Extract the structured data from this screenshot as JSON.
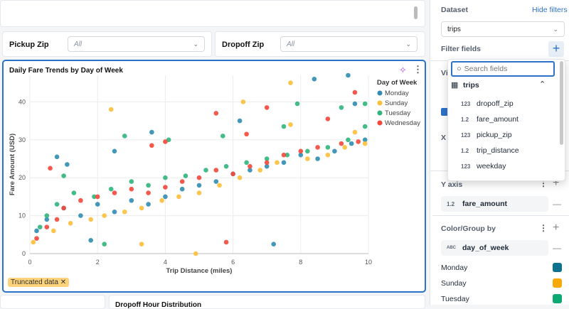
{
  "filters": [
    {
      "label": "Pickup Zip",
      "value": "All"
    },
    {
      "label": "Dropoff Zip",
      "value": "All"
    }
  ],
  "chart_card": {
    "title": "Daily Fare Trends by Day of Week",
    "truncated_label": "Truncated data"
  },
  "bottom_card": {
    "title": "Dropoff Hour Distribution"
  },
  "chart_data": {
    "type": "scatter",
    "title": "Daily Fare Trends by Day of Week",
    "xlabel": "Trip Distance (miles)",
    "ylabel": "Fare Amount (USD)",
    "xlim": [
      0,
      10
    ],
    "ylim": [
      0,
      47
    ],
    "xticks": [
      0,
      2,
      4,
      6,
      8,
      10
    ],
    "yticks": [
      0,
      10,
      20,
      30,
      40
    ],
    "grid": true,
    "legend_title": "Day of Week",
    "legend_placement": "right",
    "series": [
      {
        "name": "Monday",
        "color": "#2f8cb0",
        "points": [
          [
            0.8,
            25.5
          ],
          [
            1.1,
            23.5
          ],
          [
            3.6,
            32
          ],
          [
            2.5,
            27
          ],
          [
            6.2,
            35
          ],
          [
            8.4,
            46
          ],
          [
            9.4,
            47
          ],
          [
            9.6,
            39.5
          ],
          [
            1.8,
            3.5
          ],
          [
            7.2,
            2.5
          ],
          [
            0.2,
            6
          ],
          [
            0.5,
            9
          ],
          [
            1,
            12
          ],
          [
            1.5,
            10
          ],
          [
            2,
            13
          ],
          [
            2.5,
            11
          ],
          [
            3,
            14
          ],
          [
            3.5,
            13
          ],
          [
            4,
            15
          ],
          [
            4.5,
            17
          ],
          [
            5,
            18
          ],
          [
            5.5,
            19
          ],
          [
            6,
            21
          ],
          [
            6.5,
            22
          ],
          [
            7,
            23
          ],
          [
            7.5,
            24
          ],
          [
            8,
            26
          ],
          [
            8.5,
            25
          ],
          [
            9,
            27
          ],
          [
            9.5,
            29
          ],
          [
            9.9,
            30
          ]
        ]
      },
      {
        "name": "Sunday",
        "color": "#fbbf3a",
        "points": [
          [
            2.4,
            38
          ],
          [
            7.7,
            45
          ],
          [
            6.3,
            40
          ],
          [
            3.3,
            2.5
          ],
          [
            4.9,
            0
          ],
          [
            0.1,
            3
          ],
          [
            0.7,
            6
          ],
          [
            1.2,
            8
          ],
          [
            1.8,
            9
          ],
          [
            2.2,
            10
          ],
          [
            2.8,
            11
          ],
          [
            3.3,
            12
          ],
          [
            3.9,
            14
          ],
          [
            4.4,
            15
          ],
          [
            5,
            16
          ],
          [
            5.6,
            18
          ],
          [
            6.2,
            20
          ],
          [
            6.8,
            22
          ],
          [
            7.3,
            24
          ],
          [
            7.7,
            34
          ],
          [
            8.2,
            25
          ],
          [
            8.8,
            26
          ],
          [
            9.3,
            28
          ],
          [
            9.6,
            32
          ],
          [
            9.9,
            29
          ]
        ]
      },
      {
        "name": "Tuesday",
        "color": "#2fb57c",
        "points": [
          [
            2.8,
            31
          ],
          [
            4.1,
            30
          ],
          [
            5.7,
            31
          ],
          [
            7.9,
            39.5
          ],
          [
            9.2,
            38.5
          ],
          [
            9.9,
            39.5
          ],
          [
            7.5,
            33.5
          ],
          [
            1,
            20.5
          ],
          [
            0.5,
            10
          ],
          [
            2.2,
            2.5
          ],
          [
            0.3,
            7
          ],
          [
            0.8,
            13
          ],
          [
            1.3,
            16
          ],
          [
            1.9,
            15
          ],
          [
            2.4,
            17
          ],
          [
            3,
            19
          ],
          [
            3.5,
            18
          ],
          [
            4,
            20
          ],
          [
            4.6,
            20.5
          ],
          [
            5.2,
            22
          ],
          [
            5.8,
            23
          ],
          [
            6.4,
            24
          ],
          [
            7,
            25
          ],
          [
            7.6,
            26
          ],
          [
            8.2,
            27
          ],
          [
            8.8,
            28
          ],
          [
            9.4,
            30
          ],
          [
            9.9,
            33.5
          ]
        ]
      },
      {
        "name": "Wednesday",
        "color": "#f4473a",
        "points": [
          [
            0.6,
            22.5
          ],
          [
            5.5,
            37
          ],
          [
            7,
            38.5
          ],
          [
            9.6,
            42.5
          ],
          [
            3.6,
            28.5
          ],
          [
            4,
            29.5
          ],
          [
            6.4,
            31.5
          ],
          [
            5.8,
            3
          ],
          [
            1,
            12
          ],
          [
            1.5,
            14
          ],
          [
            2,
            15
          ],
          [
            2.5,
            16
          ],
          [
            3,
            17
          ],
          [
            3.5,
            16
          ],
          [
            4,
            17.5
          ],
          [
            4.5,
            19
          ],
          [
            5,
            20
          ],
          [
            5.5,
            22
          ],
          [
            6,
            21
          ],
          [
            6.5,
            23
          ],
          [
            7,
            24
          ],
          [
            7.5,
            26
          ],
          [
            8,
            27
          ],
          [
            8.5,
            28
          ],
          [
            8.8,
            35.5
          ],
          [
            9.2,
            29
          ],
          [
            9.7,
            29.5
          ],
          [
            0.2,
            4
          ],
          [
            0.5,
            7
          ],
          [
            0.8,
            9
          ]
        ]
      }
    ]
  },
  "panel": {
    "dataset_label": "Dataset",
    "hide_filters": "Hide filters",
    "dataset_value": "trips",
    "filter_fields_label": "Filter fields",
    "hidden_v": "Vi",
    "hidden_x": "X",
    "y_axis_label": "Y axis",
    "y_field": {
      "type": "1.2",
      "name": "fare_amount"
    },
    "color_label": "Color/Group by",
    "color_field": {
      "type": "ABC",
      "name": "day_of_week"
    },
    "colors": [
      {
        "name": "Monday",
        "color": "#0e7190"
      },
      {
        "name": "Sunday",
        "color": "#f7a90a"
      },
      {
        "name": "Tuesday",
        "color": "#0ea872"
      }
    ]
  },
  "popover": {
    "search_placeholder": "Search fields",
    "table": "trips",
    "fields": [
      {
        "type": "123",
        "name": "dropoff_zip"
      },
      {
        "type": "1.2",
        "name": "fare_amount"
      },
      {
        "type": "123",
        "name": "pickup_zip"
      },
      {
        "type": "1.2",
        "name": "trip_distance"
      },
      {
        "type": "123",
        "name": "weekday"
      }
    ]
  }
}
